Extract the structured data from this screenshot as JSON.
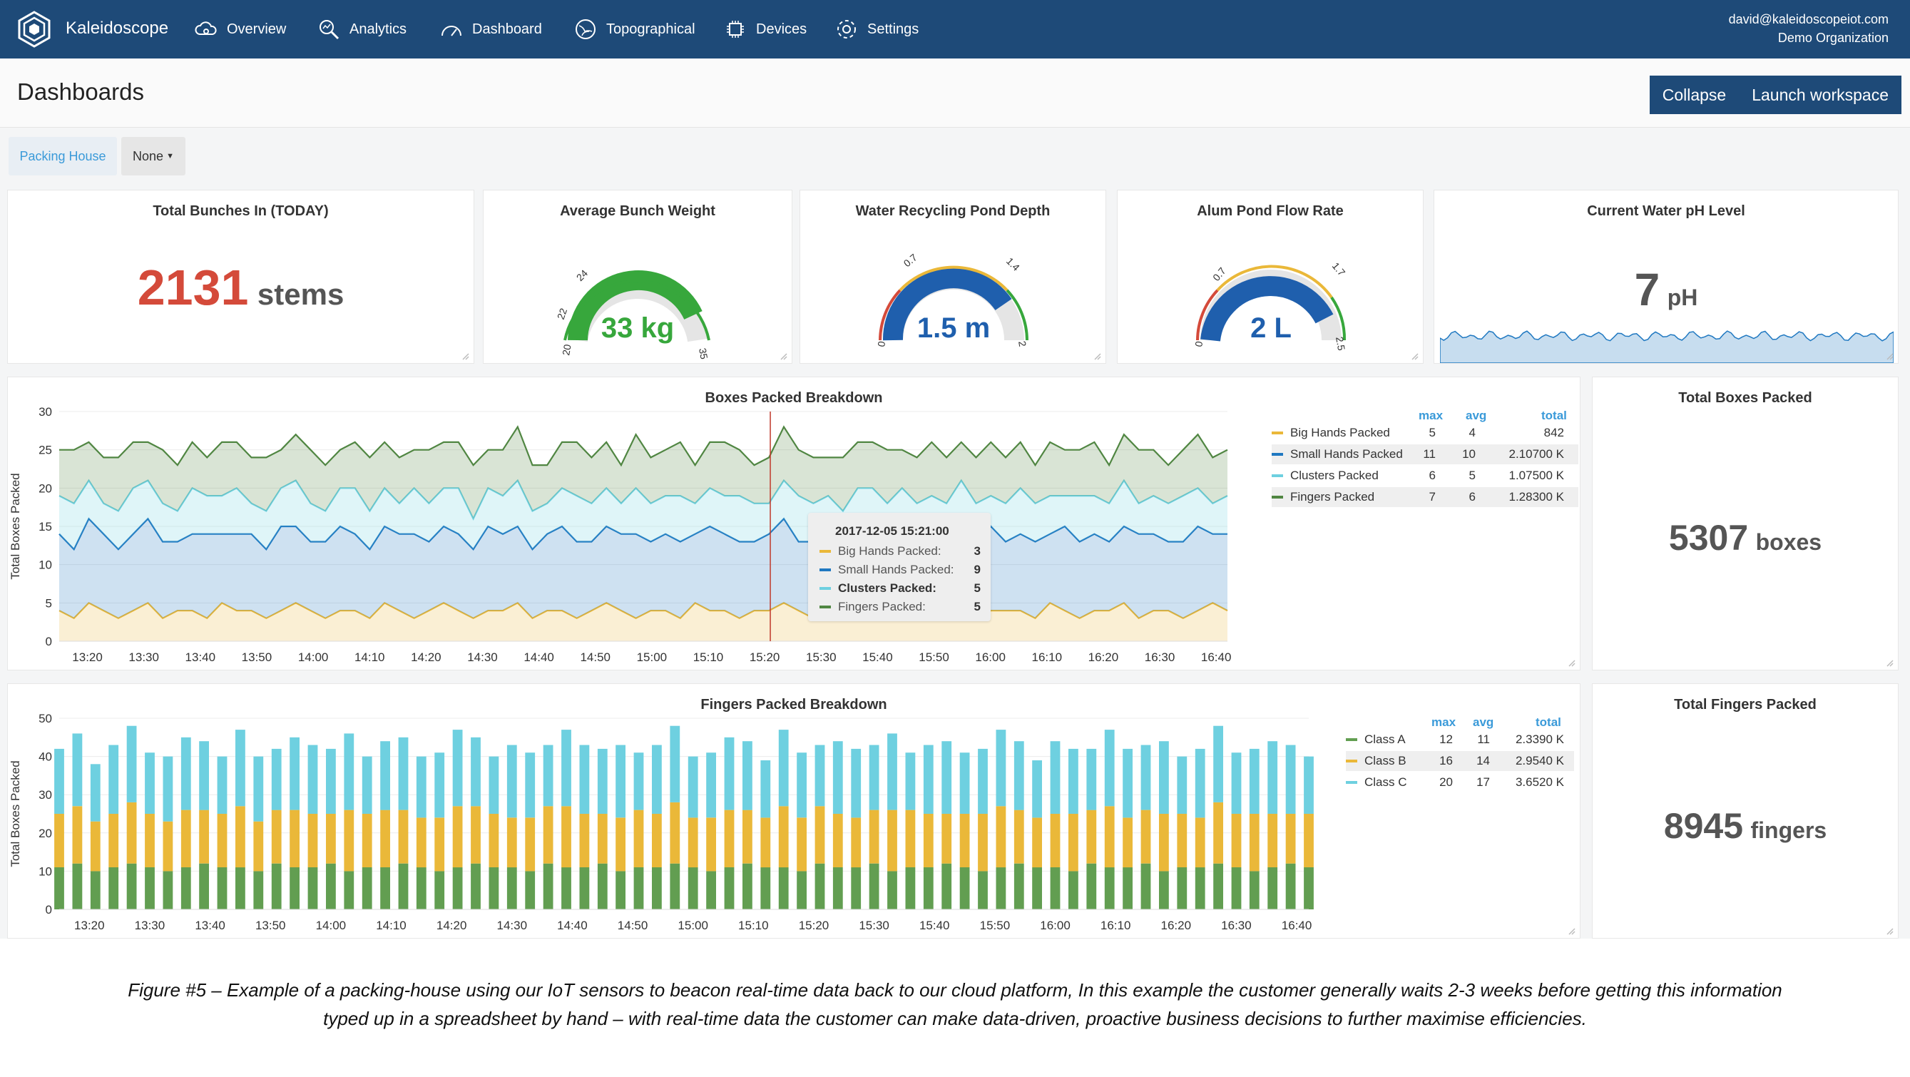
{
  "nav": {
    "brand": "Kaleidoscope",
    "items": [
      {
        "label": "Overview",
        "icon": "cloud-gear-icon"
      },
      {
        "label": "Analytics",
        "icon": "magnifier-icon"
      },
      {
        "label": "Dashboard",
        "icon": "gauge-icon"
      },
      {
        "label": "Topographical",
        "icon": "globe-icon"
      },
      {
        "label": "Devices",
        "icon": "chip-icon"
      },
      {
        "label": "Settings",
        "icon": "gear-icon"
      }
    ],
    "email": "david@kaleidoscopeiot.com",
    "org": "Demo Organization"
  },
  "header": {
    "title": "Dashboards",
    "collapse_label": "Collapse",
    "launch_label": "Launch workspace"
  },
  "filters": {
    "site": "Packing House",
    "select": "None"
  },
  "stats": {
    "bunches": {
      "title": "Total Bunches In (TODAY)",
      "value": "2131",
      "unit": "stems"
    },
    "weight": {
      "title": "Average Bunch Weight",
      "value": "33 kg",
      "min": "20",
      "t1": "22",
      "t2": "24",
      "max": "35"
    },
    "pond": {
      "title": "Water Recycling Pond Depth",
      "value": "1.5 m",
      "min": "0",
      "t1": "0.7",
      "t2": "1.4",
      "max": "2"
    },
    "alum": {
      "title": "Alum Pond Flow Rate",
      "value": "2 L",
      "min": "0",
      "t1": "0.7",
      "t2": "1.7",
      "max": "2.5"
    },
    "ph": {
      "title": "Current Water pH Level",
      "value": "7",
      "unit": "pH"
    },
    "boxes_total": {
      "title": "Total Boxes Packed",
      "value": "5307",
      "unit": "boxes"
    },
    "fingers_total": {
      "title": "Total Fingers Packed",
      "value": "8945",
      "unit": "fingers"
    }
  },
  "colors": {
    "nav": "#1e4a78",
    "red": "#d44a3a",
    "green": "#37a73c",
    "blue": "#1f5fad",
    "yellow": "#eab839",
    "lightblue": "#6ed0e0",
    "darkblue": "#1f78c1",
    "darkgreen": "#508642",
    "class_green": "#629e51"
  },
  "boxes_chart": {
    "title": "Boxes Packed Breakdown",
    "ylabel": "Total Boxes Packed",
    "legend_headers": [
      "max",
      "avg",
      "total"
    ],
    "legend": [
      {
        "name": "Big Hands Packed",
        "max": "5",
        "avg": "4",
        "total": "842"
      },
      {
        "name": "Small Hands Packed",
        "max": "11",
        "avg": "10",
        "total": "2.10700 K"
      },
      {
        "name": "Clusters Packed",
        "max": "6",
        "avg": "5",
        "total": "1.07500 K"
      },
      {
        "name": "Fingers Packed",
        "max": "7",
        "avg": "6",
        "total": "1.28300 K"
      }
    ],
    "tooltip": {
      "time": "2017-12-05 15:21:00",
      "rows": [
        {
          "name": "Big Hands Packed:",
          "value": "3"
        },
        {
          "name": "Small Hands Packed:",
          "value": "9"
        },
        {
          "name": "Clusters Packed:",
          "value": "5"
        },
        {
          "name": "Fingers Packed:",
          "value": "5"
        }
      ]
    }
  },
  "fingers_chart": {
    "title": "Fingers Packed Breakdown",
    "ylabel": "Total Boxes Packed",
    "legend_headers": [
      "max",
      "avg",
      "total"
    ],
    "legend": [
      {
        "name": "Class A",
        "max": "12",
        "avg": "11",
        "total": "2.3390 K"
      },
      {
        "name": "Class B",
        "max": "16",
        "avg": "14",
        "total": "2.9540 K"
      },
      {
        "name": "Class C",
        "max": "20",
        "avg": "17",
        "total": "3.6520 K"
      }
    ]
  },
  "chart_data": [
    {
      "type": "area",
      "title": "Boxes Packed Breakdown",
      "ylabel": "Total Boxes Packed",
      "stacked": true,
      "ylim": [
        0,
        30
      ],
      "yticks": [
        "0",
        "5",
        "10",
        "15",
        "20",
        "25",
        "30"
      ],
      "x_ticks": [
        "13:20",
        "13:30",
        "13:40",
        "13:50",
        "14:00",
        "14:10",
        "14:20",
        "14:30",
        "14:40",
        "14:50",
        "15:00",
        "15:10",
        "15:20",
        "15:30",
        "15:40",
        "15:50",
        "16:00",
        "16:10",
        "16:20",
        "16:30",
        "16:40"
      ],
      "x_start": "13:15",
      "x_end": "16:42",
      "series": [
        {
          "name": "Big Hands Packed",
          "color": "#eab839",
          "values": [
            4,
            3,
            5,
            4,
            3,
            4,
            5,
            3,
            4,
            4,
            3,
            5,
            4,
            4,
            3,
            4,
            5,
            4,
            3,
            4,
            4,
            3,
            5,
            4,
            3,
            4,
            5,
            4,
            3,
            4,
            4,
            5,
            3,
            4,
            4,
            3,
            4,
            5,
            4,
            3,
            4,
            4,
            3,
            5,
            4,
            4,
            3,
            4,
            4,
            5,
            4,
            3,
            4,
            4,
            3,
            5,
            4,
            4,
            3,
            4,
            4,
            5,
            3,
            4,
            4,
            4,
            3,
            5,
            4,
            3,
            4,
            4,
            5,
            3,
            4,
            4,
            3,
            4,
            5,
            4
          ]
        },
        {
          "name": "Small Hands Packed",
          "color": "#1f78c1",
          "values": [
            10,
            9,
            11,
            10,
            9,
            10,
            11,
            10,
            9,
            10,
            11,
            9,
            10,
            10,
            9,
            11,
            10,
            9,
            10,
            11,
            10,
            9,
            10,
            10,
            11,
            9,
            10,
            10,
            9,
            11,
            10,
            10,
            9,
            10,
            11,
            10,
            9,
            10,
            10,
            11,
            9,
            10,
            10,
            9,
            11,
            10,
            10,
            9,
            10,
            11,
            9,
            10,
            10,
            9,
            11,
            10,
            9,
            10,
            11,
            10,
            9,
            10,
            10,
            11,
            9,
            10,
            10,
            9,
            11,
            10,
            10,
            9,
            10,
            11,
            10,
            9,
            10,
            11,
            9,
            10
          ]
        },
        {
          "name": "Clusters Packed",
          "color": "#6ed0e0",
          "values": [
            5,
            6,
            5,
            4,
            5,
            6,
            5,
            5,
            4,
            6,
            5,
            5,
            6,
            4,
            5,
            5,
            6,
            5,
            4,
            5,
            6,
            5,
            5,
            4,
            6,
            5,
            5,
            6,
            4,
            5,
            5,
            6,
            5,
            4,
            5,
            6,
            5,
            5,
            4,
            6,
            5,
            5,
            6,
            4,
            5,
            5,
            6,
            5,
            4,
            5,
            6,
            5,
            5,
            4,
            6,
            5,
            5,
            6,
            4,
            5,
            5,
            6,
            5,
            4,
            5,
            6,
            5,
            5,
            4,
            6,
            5,
            5,
            6,
            4,
            5,
            5,
            6,
            5,
            4,
            5
          ]
        },
        {
          "name": "Fingers Packed",
          "color": "#508642",
          "values": [
            6,
            7,
            5,
            6,
            7,
            6,
            5,
            7,
            6,
            6,
            5,
            7,
            6,
            6,
            7,
            5,
            6,
            7,
            6,
            5,
            6,
            7,
            6,
            6,
            5,
            7,
            6,
            6,
            7,
            5,
            6,
            7,
            6,
            5,
            6,
            7,
            6,
            6,
            5,
            7,
            6,
            6,
            7,
            5,
            6,
            7,
            6,
            5,
            6,
            7,
            6,
            6,
            5,
            7,
            6,
            6,
            7,
            5,
            6,
            7,
            6,
            5,
            6,
            7,
            6,
            6,
            5,
            7,
            6,
            6,
            7,
            5,
            6,
            7,
            6,
            5,
            6,
            7,
            6,
            6
          ]
        }
      ]
    },
    {
      "type": "bar",
      "title": "Fingers Packed Breakdown",
      "ylabel": "Total Boxes Packed",
      "stacked": true,
      "ylim": [
        0,
        50
      ],
      "yticks": [
        "0",
        "10",
        "20",
        "30",
        "40",
        "50"
      ],
      "x_ticks": [
        "13:20",
        "13:30",
        "13:40",
        "13:50",
        "14:00",
        "14:10",
        "14:20",
        "14:30",
        "14:40",
        "14:50",
        "15:00",
        "15:10",
        "15:20",
        "15:30",
        "15:40",
        "15:50",
        "16:00",
        "16:10",
        "16:20",
        "16:30",
        "16:40"
      ],
      "x_start": "13:15",
      "x_end": "16:42",
      "series": [
        {
          "name": "Class A",
          "color": "#629e51",
          "values": [
            11,
            12,
            10,
            11,
            12,
            11,
            10,
            11,
            12,
            11,
            11,
            10,
            12,
            11,
            11,
            12,
            10,
            11,
            11,
            12,
            11,
            10,
            11,
            12,
            11,
            11,
            10,
            12,
            11,
            11,
            12,
            10,
            11,
            11,
            12,
            11,
            10,
            11,
            12,
            11,
            11,
            10,
            12,
            11,
            11,
            12,
            10,
            11,
            11,
            12,
            11,
            10,
            11,
            12,
            11,
            11,
            10,
            12,
            11,
            11,
            12,
            10,
            11,
            11,
            12,
            11,
            10,
            11,
            12,
            11
          ]
        },
        {
          "name": "Class B",
          "color": "#eab839",
          "values": [
            14,
            15,
            13,
            14,
            16,
            14,
            13,
            15,
            14,
            14,
            16,
            13,
            14,
            15,
            14,
            13,
            16,
            14,
            15,
            14,
            13,
            14,
            16,
            15,
            14,
            13,
            14,
            15,
            16,
            14,
            13,
            14,
            15,
            14,
            16,
            13,
            14,
            15,
            14,
            13,
            16,
            14,
            15,
            14,
            13,
            14,
            16,
            15,
            14,
            13,
            14,
            15,
            16,
            14,
            13,
            14,
            15,
            14,
            16,
            13,
            14,
            15,
            14,
            13,
            16,
            14,
            15,
            14,
            13,
            14
          ]
        },
        {
          "name": "Class C",
          "color": "#6ed0e0",
          "values": [
            17,
            19,
            15,
            18,
            20,
            16,
            17,
            19,
            18,
            15,
            20,
            17,
            16,
            19,
            18,
            17,
            20,
            15,
            18,
            19,
            16,
            17,
            20,
            18,
            15,
            19,
            17,
            16,
            20,
            18,
            17,
            19,
            15,
            18,
            20,
            16,
            17,
            19,
            18,
            15,
            20,
            17,
            16,
            19,
            18,
            17,
            20,
            15,
            18,
            19,
            16,
            17,
            20,
            18,
            15,
            19,
            17,
            16,
            20,
            18,
            17,
            19,
            15,
            18,
            20,
            16,
            17,
            19,
            18,
            15
          ]
        }
      ]
    }
  ],
  "caption": {
    "line1": "Figure #5 – Example of a packing-house using our IoT sensors to beacon real-time data back to our cloud platform, In this example the customer generally waits 2-3 weeks before getting this information",
    "line2": "typed up in a spreadsheet by hand – with real-time data the customer can make data-driven, proactive business decisions to further maximise efficiencies."
  }
}
